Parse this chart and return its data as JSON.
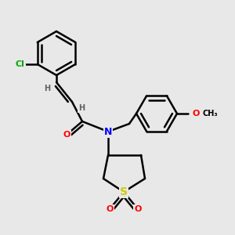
{
  "bg_color": "#e8e8e8",
  "atom_colors": {
    "C": "#000000",
    "N": "#0000ff",
    "O": "#ff0000",
    "S": "#cccc00",
    "Cl": "#00aa00",
    "H": "#606060"
  },
  "bond_color": "#000000",
  "bond_width": 1.8,
  "font_size_atoms": 8,
  "scale": 1.0
}
